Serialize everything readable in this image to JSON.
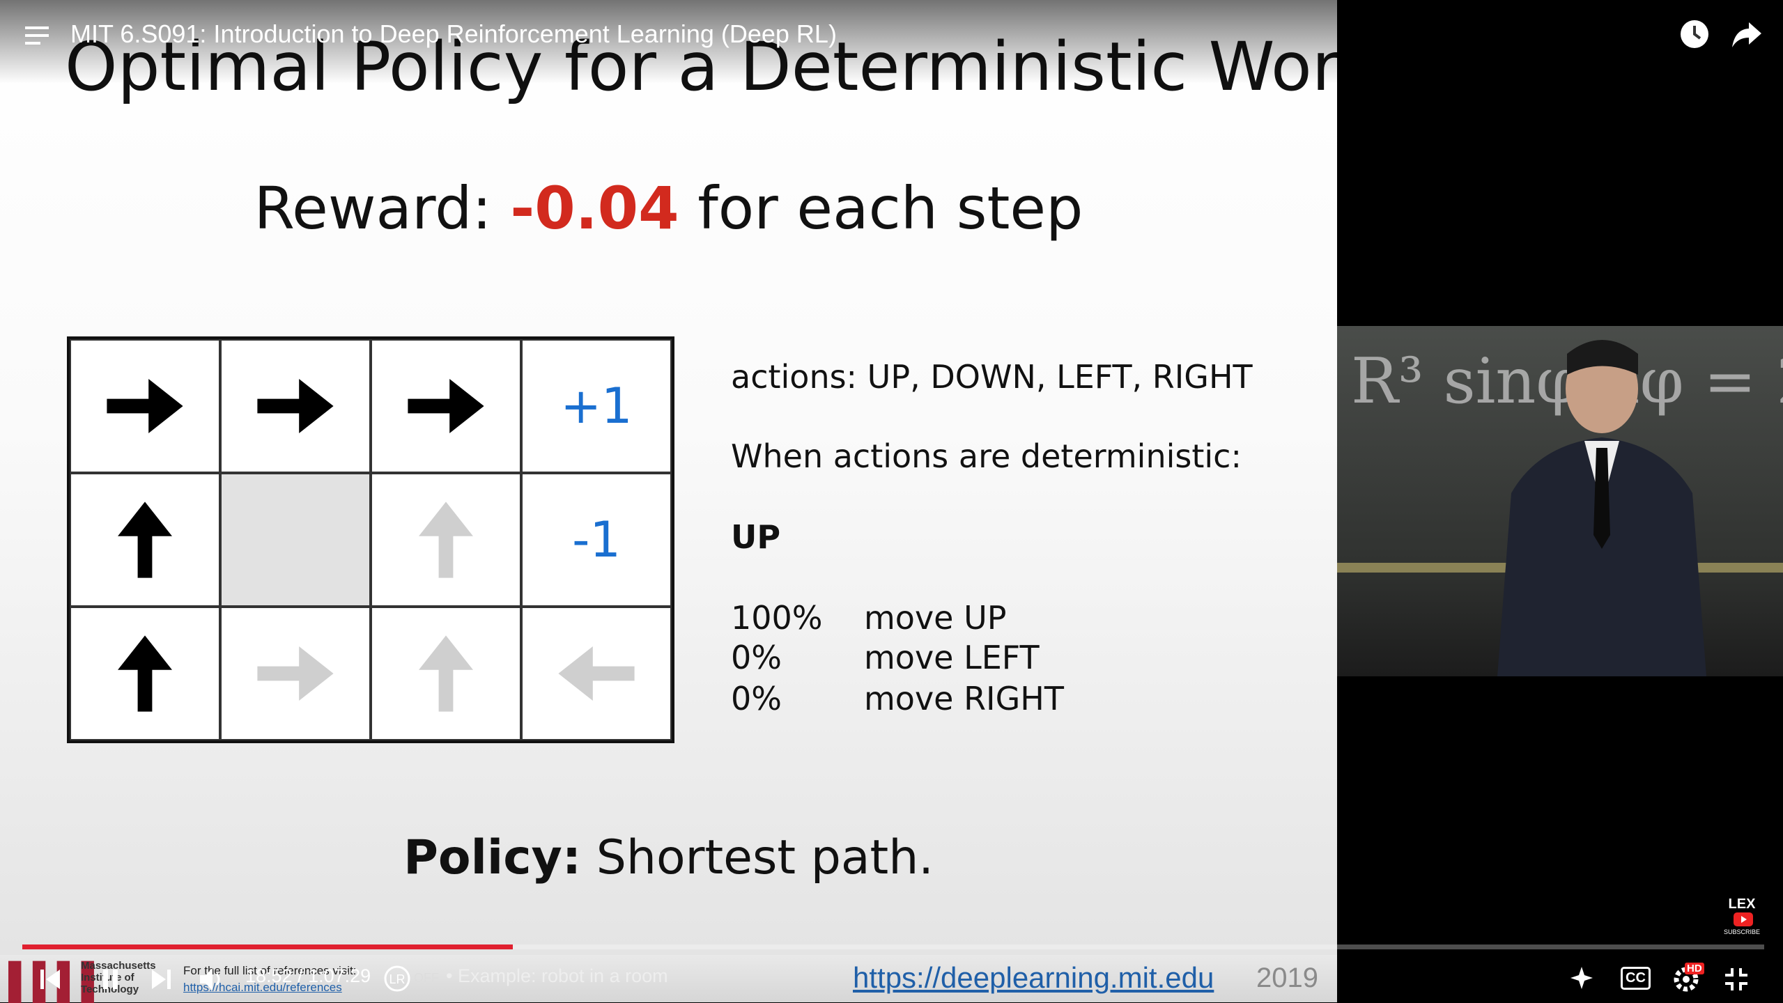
{
  "player": {
    "title": "MIT 6.S091: Introduction to Deep Reinforcement Learning (Deep RL)",
    "time": "18:52 / 1:07:29",
    "autoplay_state": "OFF",
    "chapter": "• Example: robot in a room",
    "badge": "LEX",
    "badge_sub": "SUBSCRIBE",
    "cc": "CC",
    "hd": "HD"
  },
  "slide": {
    "title": "Optimal Policy for a Deterministic World",
    "reward": {
      "prefix": "Reward:",
      "value": "-0.04",
      "suffix": "for each step"
    },
    "grid": {
      "goal": "+1",
      "pit": "-1"
    },
    "actions": "actions: UP, DOWN, LEFT, RIGHT",
    "condition": "When actions are deterministic:",
    "chosen_action": "UP",
    "outcomes": [
      {
        "probability": "100%",
        "move": "move UP"
      },
      {
        "probability": "0%",
        "move": "move LEFT"
      },
      {
        "probability": "0%",
        "move": "move RIGHT"
      }
    ],
    "policy": {
      "label": "Policy:",
      "text": "Shortest path."
    },
    "footer": {
      "institution": "Massachusetts Institute of Technology",
      "reference_note": "For the full list of references visit:",
      "reference_url": "https://hcai.mit.edu/references",
      "course_url": "https://deeplearning.mit.edu",
      "year": "2019"
    }
  }
}
